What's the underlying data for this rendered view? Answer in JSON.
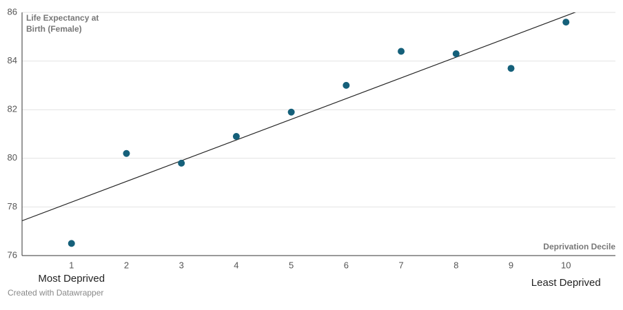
{
  "chart_data": {
    "type": "scatter",
    "ylabel": "Life Expectancy at Birth (Female)",
    "xlabel": "Deprivation Decile",
    "x": [
      1,
      2,
      3,
      4,
      5,
      6,
      7,
      8,
      9,
      10
    ],
    "series": [
      {
        "color": "#15607a",
        "values": [
          76.5,
          80.2,
          79.8,
          80.9,
          81.9,
          83.0,
          84.4,
          84.3,
          83.7,
          85.6
        ]
      }
    ],
    "trendline": true,
    "xlim": [
      0.1,
      10.9
    ],
    "xticks": [
      1,
      2,
      3,
      4,
      5,
      6,
      7,
      8,
      9,
      10
    ],
    "ylim": [
      76,
      86
    ],
    "yticks": [
      76,
      78,
      80,
      82,
      84,
      86
    ],
    "grid": true,
    "annotations": [
      {
        "text": "Most Deprived",
        "x": 1
      },
      {
        "text": "Least Deprived",
        "x": 10
      }
    ],
    "footer": "Created with Datawrapper"
  }
}
